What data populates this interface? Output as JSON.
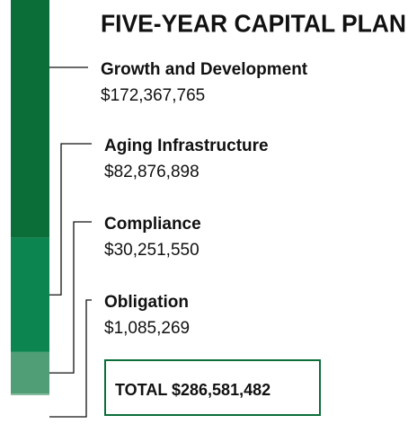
{
  "chart_data": {
    "type": "stacked-bar",
    "title": "FIVE-YEAR CAPITAL PLAN",
    "categories": [
      "Growth and Development",
      "Aging Infrastructure",
      "Compliance",
      "Obligation"
    ],
    "values": [
      172367765,
      82876898,
      30251550,
      1085269
    ],
    "value_labels": [
      "$172,367,765",
      "$82,876,898",
      "$30,251,550",
      "$1,085,269"
    ],
    "colors": [
      "#0b6e38",
      "#0d8550",
      "#4f9e76",
      "#86bb9d"
    ],
    "total_label": "TOTAL $286,581,482"
  }
}
